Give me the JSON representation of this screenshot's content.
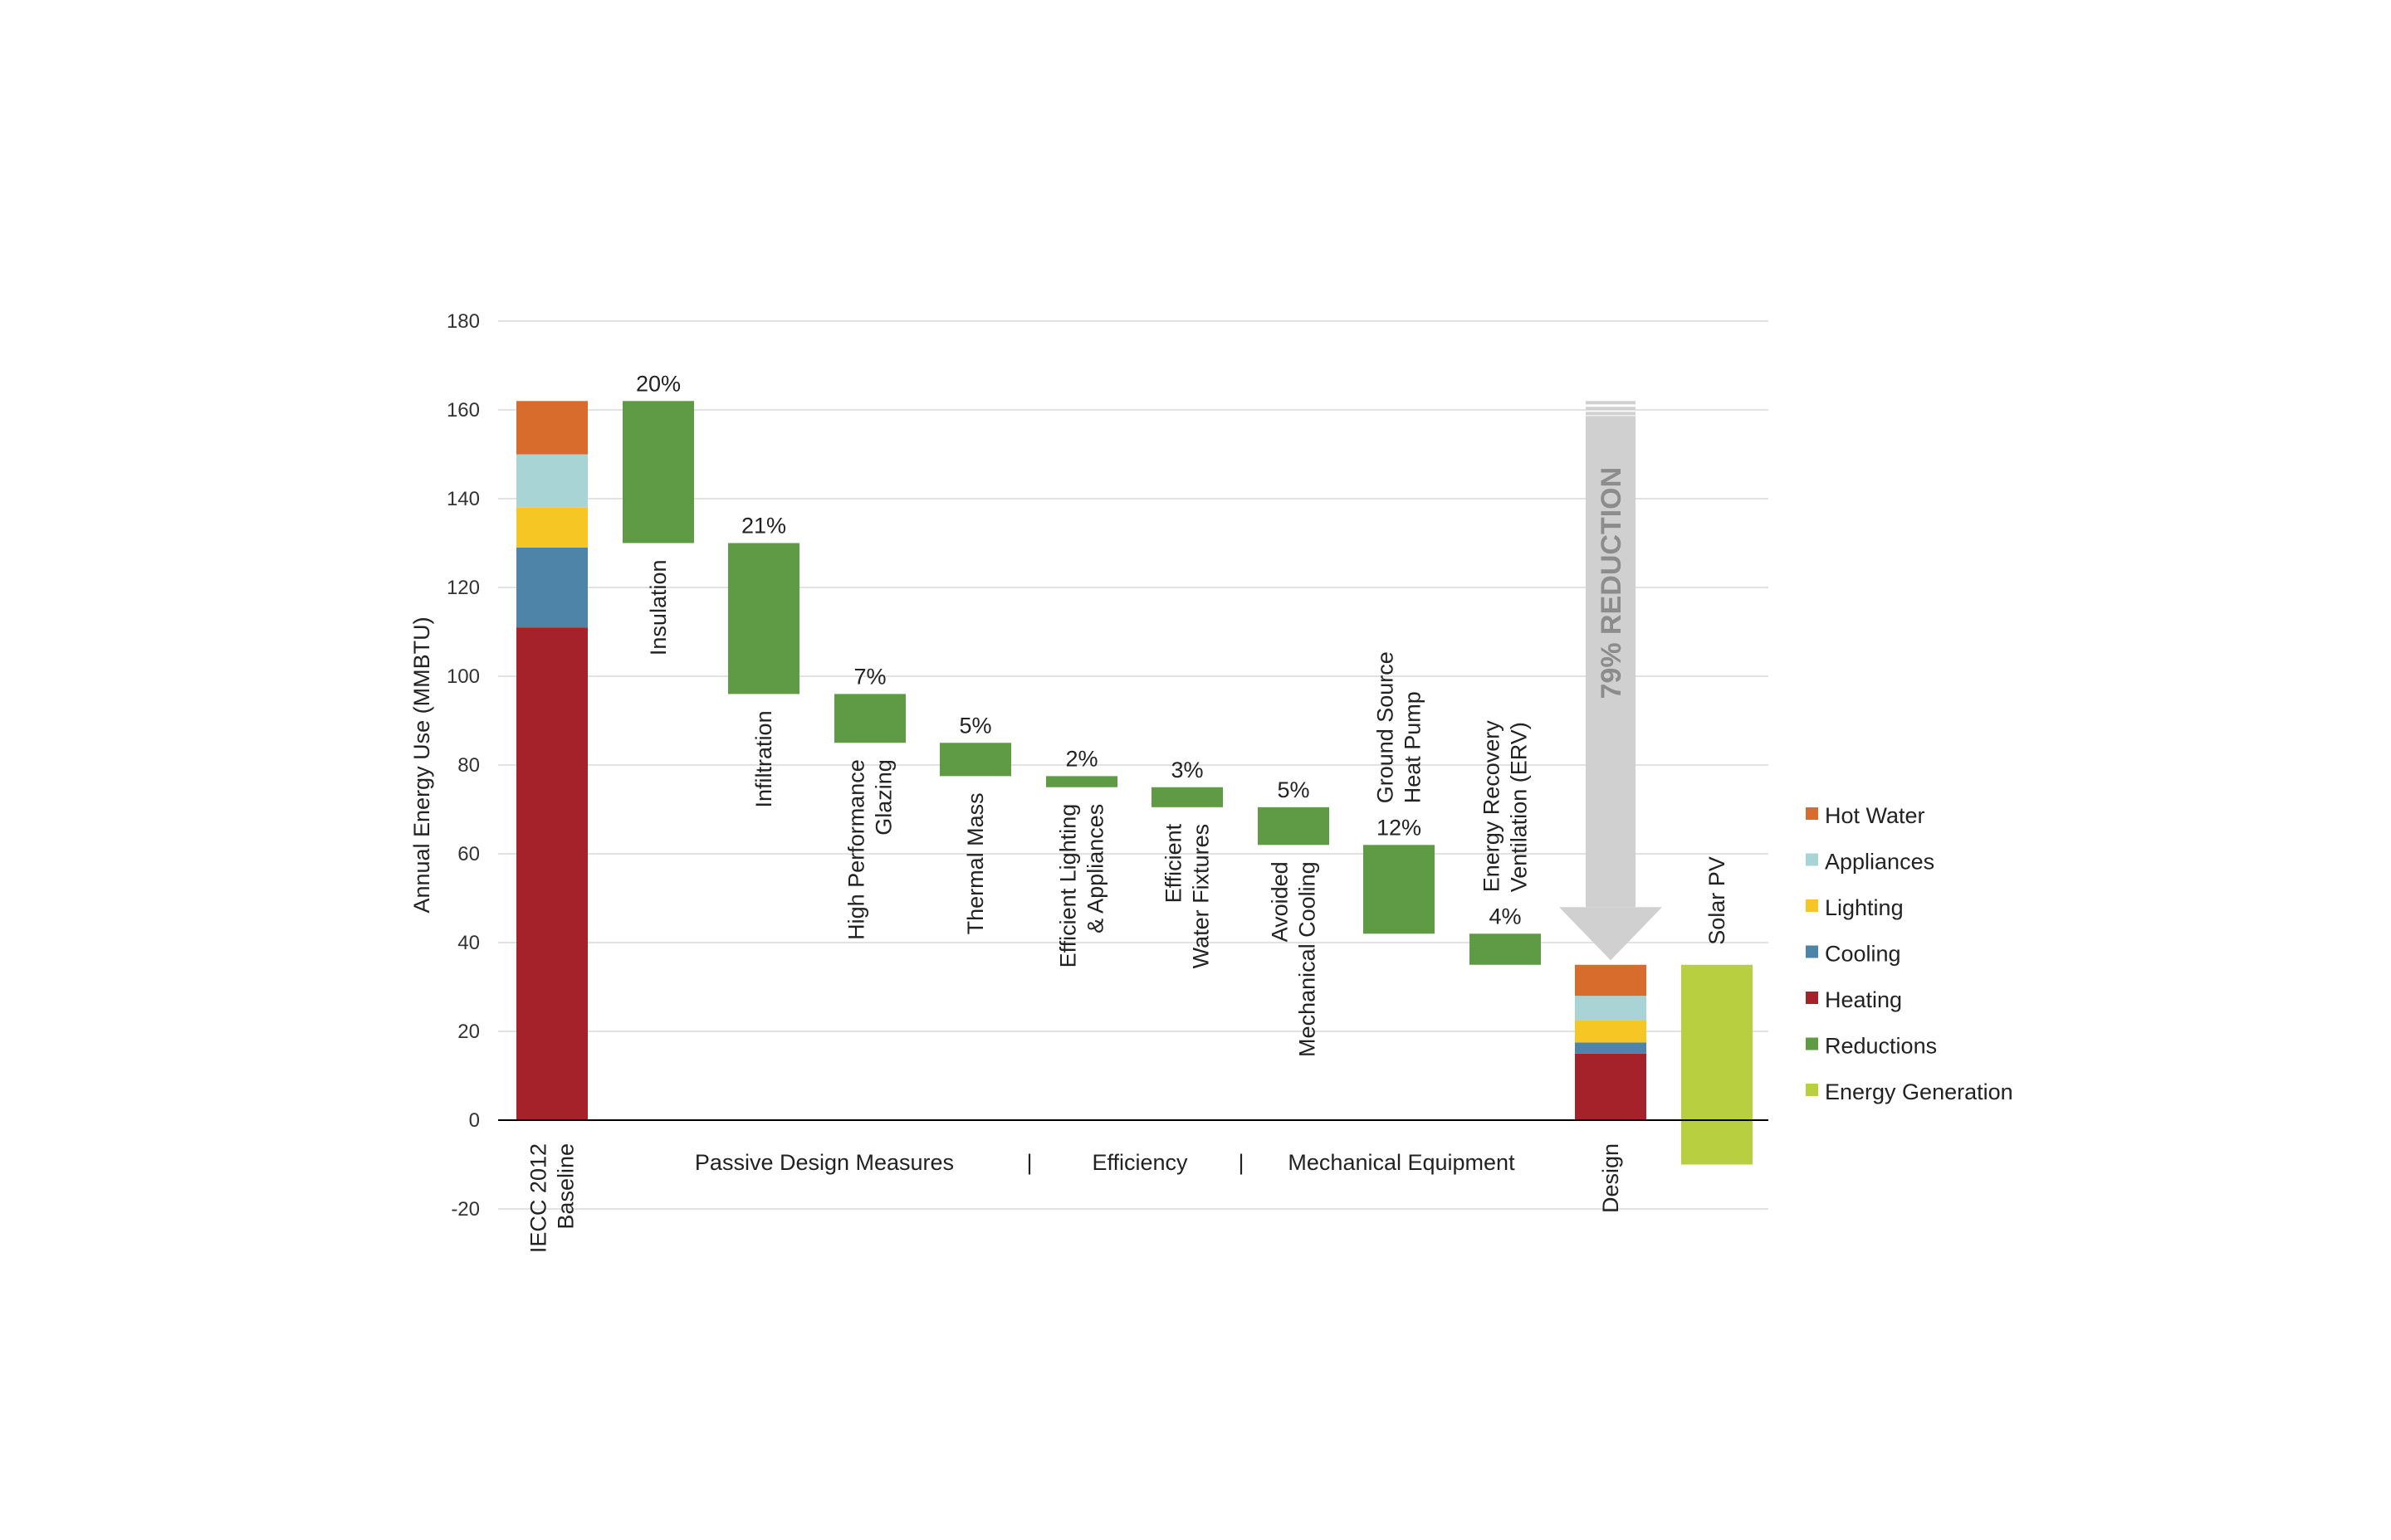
{
  "chart_data": {
    "type": "bar",
    "subtype": "waterfall",
    "title": "",
    "ylabel": "Annual Energy Use (MMBTU)",
    "ylim": [
      -20,
      180
    ],
    "yticks": [
      -20,
      0,
      20,
      40,
      60,
      80,
      100,
      120,
      140,
      160,
      180
    ],
    "grid": true,
    "legend_position": "right",
    "colors": {
      "hot_water": "#D86C2C",
      "appliances": "#A8D4D6",
      "lighting": "#F6C624",
      "cooling": "#4E84A8",
      "heating": "#A6222A",
      "reductions": "#5E9B44",
      "energy_generation": "#B8D040",
      "axis": "#000000",
      "grid": "#d9d9d9",
      "arrow": "#d0d0d0"
    },
    "legend": [
      {
        "name": "Hot Water",
        "color_key": "hot_water"
      },
      {
        "name": "Appliances",
        "color_key": "appliances"
      },
      {
        "name": "Lighting",
        "color_key": "lighting"
      },
      {
        "name": "Cooling",
        "color_key": "cooling"
      },
      {
        "name": "Heating",
        "color_key": "heating"
      },
      {
        "name": "Reductions",
        "color_key": "reductions"
      },
      {
        "name": "Energy Generation",
        "color_key": "energy_generation"
      }
    ],
    "baseline": {
      "label_lines": [
        "IECC 2012",
        "Baseline"
      ],
      "segments": [
        {
          "name": "Heating",
          "color_key": "heating",
          "value": 111
        },
        {
          "name": "Cooling",
          "color_key": "cooling",
          "value": 18
        },
        {
          "name": "Lighting",
          "color_key": "lighting",
          "value": 9
        },
        {
          "name": "Appliances",
          "color_key": "appliances",
          "value": 12
        },
        {
          "name": "Hot Water",
          "color_key": "hot_water",
          "value": 12
        }
      ]
    },
    "reductions": [
      {
        "label_lines": [
          "Insulation"
        ],
        "percent": "20%",
        "top": 162,
        "bottom": 130
      },
      {
        "label_lines": [
          "Infiltration"
        ],
        "percent": "21%",
        "top": 130,
        "bottom": 96
      },
      {
        "label_lines": [
          "High Performance",
          "Glazing"
        ],
        "percent": "7%",
        "top": 96,
        "bottom": 85
      },
      {
        "label_lines": [
          "Thermal Mass"
        ],
        "percent": "5%",
        "top": 85,
        "bottom": 77.5
      },
      {
        "label_lines": [
          "Efficient Lighting",
          "& Appliances"
        ],
        "percent": "2%",
        "top": 77.5,
        "bottom": 75
      },
      {
        "label_lines": [
          "Efficient",
          "Water Fixtures"
        ],
        "percent": "3%",
        "top": 75,
        "bottom": 70.5
      },
      {
        "label_lines": [
          "Avoided",
          "Mechanical Cooling"
        ],
        "percent": "5%",
        "top": 70.5,
        "bottom": 62
      },
      {
        "label_lines": [
          "Ground Source",
          "Heat Pump"
        ],
        "percent": "12%",
        "top": 62,
        "bottom": 42
      },
      {
        "label_lines": [
          "Energy Recovery",
          "Ventilation (ERV)"
        ],
        "percent": "4%",
        "top": 42,
        "bottom": 35
      }
    ],
    "design": {
      "label_lines": [
        "Design"
      ],
      "segments": [
        {
          "name": "Heating",
          "color_key": "heating",
          "value": 15
        },
        {
          "name": "Cooling",
          "color_key": "cooling",
          "value": 2.5
        },
        {
          "name": "Lighting",
          "color_key": "lighting",
          "value": 5
        },
        {
          "name": "Appliances",
          "color_key": "appliances",
          "value": 5.5
        },
        {
          "name": "Hot Water",
          "color_key": "hot_water",
          "value": 7
        }
      ]
    },
    "solar_pv": {
      "label_lines": [
        "Solar PV"
      ],
      "top": 35,
      "bottom": -10
    },
    "reduction_arrow": {
      "label": "79% REDUCTION",
      "from": 162,
      "to": 36
    },
    "groups": [
      {
        "label": "Passive Design Measures"
      },
      {
        "label": "Efficiency"
      },
      {
        "label": "Mechanical Equipment"
      }
    ],
    "group_separator": "|"
  }
}
